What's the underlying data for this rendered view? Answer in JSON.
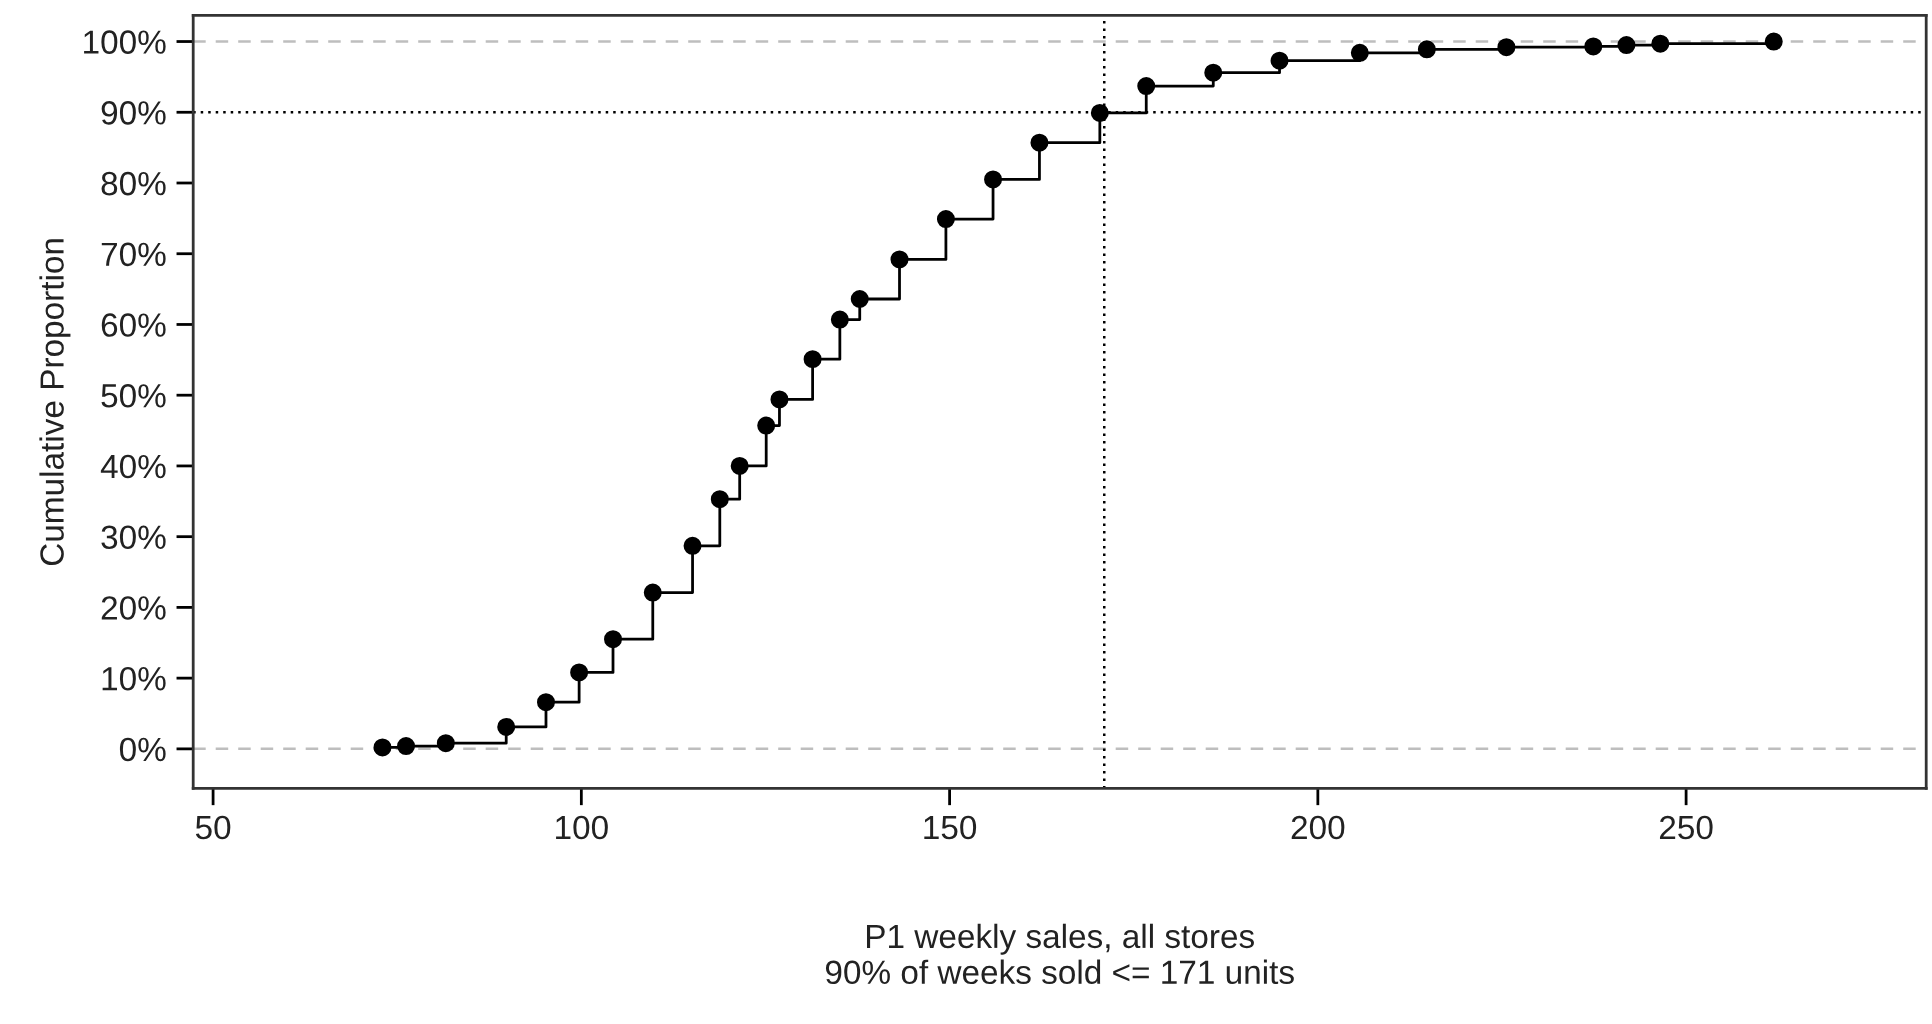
{
  "chart_data": {
    "type": "step",
    "xlabel": "P1 weekly sales, all stores\n90% of weeks sold <= 171 units",
    "ylabel": "Cumulative Proportion",
    "series": [
      {
        "color": "#000000",
        "x": [
          73.0,
          76.2,
          81.6,
          89.8,
          95.2,
          99.7,
          104.3,
          109.7,
          115.1,
          118.8,
          121.5,
          125.1,
          126.9,
          131.4,
          135.1,
          137.8,
          143.2,
          149.5,
          155.9,
          162.2,
          170.4,
          176.7,
          185.8,
          194.8,
          205.7,
          214.8,
          225.6,
          237.4,
          241.9,
          246.5,
          261.9
        ],
        "values": [
          0.2,
          0.4,
          0.8,
          3.1,
          6.6,
          10.8,
          15.5,
          22.1,
          28.7,
          35.3,
          40.0,
          45.7,
          49.4,
          55.1,
          60.7,
          63.6,
          69.2,
          74.9,
          80.5,
          85.7,
          89.9,
          93.7,
          95.6,
          97.3,
          98.4,
          98.9,
          99.2,
          99.3,
          99.5,
          99.7,
          100
        ]
      }
    ],
    "marker": "circle",
    "xlim": [
      47.3,
      282.6
    ],
    "xticks": [
      50,
      100,
      150,
      200,
      250
    ],
    "ylim": [
      -5.6,
      103.7
    ],
    "yticks": [
      {
        "value": 0,
        "label": "0%"
      },
      {
        "value": 10,
        "label": "10%"
      },
      {
        "value": 20,
        "label": "20%"
      },
      {
        "value": 30,
        "label": "30%"
      },
      {
        "value": 40,
        "label": "40%"
      },
      {
        "value": 50,
        "label": "50%"
      },
      {
        "value": 60,
        "label": "60%"
      },
      {
        "value": 70,
        "label": "70%"
      },
      {
        "value": 80,
        "label": "80%"
      },
      {
        "value": 90,
        "label": "90%"
      },
      {
        "value": 100,
        "label": "100%"
      }
    ],
    "ref_lines": [
      {
        "axis": "y",
        "value": 0,
        "color": "#bebebe",
        "line_style": "dashed"
      },
      {
        "axis": "y",
        "value": 100,
        "color": "#bebebe",
        "line_style": "dashed"
      },
      {
        "axis": "y",
        "value": 90,
        "color": "#000000",
        "line_style": "dotted"
      },
      {
        "axis": "x",
        "value": 171,
        "color": "#000000",
        "line_style": "dotted"
      }
    ],
    "grid": false,
    "legend": false
  }
}
